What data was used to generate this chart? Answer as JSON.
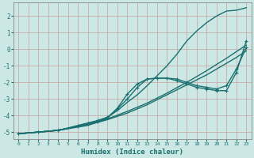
{
  "xlabel": "Humidex (Indice chaleur)",
  "xlim": [
    -0.5,
    23.5
  ],
  "ylim": [
    -5.4,
    2.8
  ],
  "xticks": [
    0,
    1,
    2,
    3,
    4,
    5,
    6,
    7,
    8,
    9,
    10,
    11,
    12,
    13,
    14,
    15,
    16,
    17,
    18,
    19,
    20,
    21,
    22,
    23
  ],
  "yticks": [
    -5,
    -4,
    -3,
    -2,
    -1,
    0,
    1,
    2
  ],
  "bg_color": "#cce8e4",
  "grid_color": "#c8a0a0",
  "line_color": "#1a7070",
  "spine_color": "#888888",
  "lines": [
    {
      "x": [
        0,
        1,
        2,
        3,
        4,
        5,
        6,
        7,
        8,
        9,
        10,
        11,
        12,
        13,
        14,
        15,
        16,
        17,
        18,
        19,
        20,
        21,
        22,
        23
      ],
      "y": [
        -5.1,
        -5.05,
        -5.0,
        -4.95,
        -4.9,
        -4.8,
        -4.7,
        -4.6,
        -4.4,
        -4.1,
        -3.7,
        -3.2,
        -2.75,
        -2.2,
        -1.6,
        -1.0,
        -0.3,
        0.5,
        1.1,
        1.6,
        2.0,
        2.3,
        2.35,
        2.5
      ],
      "marker": null,
      "lw": 1.0
    },
    {
      "x": [
        0,
        2,
        4,
        6,
        7,
        8,
        9,
        10,
        11,
        12,
        13,
        14,
        15,
        16,
        17,
        18,
        19,
        20,
        21,
        22,
        23
      ],
      "y": [
        -5.1,
        -5.0,
        -4.9,
        -4.6,
        -4.45,
        -4.3,
        -4.1,
        -3.6,
        -3.0,
        -2.3,
        -1.8,
        -1.75,
        -1.75,
        -1.8,
        -2.0,
        -2.2,
        -2.3,
        -2.4,
        -2.2,
        -1.2,
        0.1
      ],
      "marker": "+",
      "lw": 1.0
    },
    {
      "x": [
        0,
        2,
        4,
        6,
        7,
        8,
        9,
        10,
        11,
        12,
        13,
        14,
        15,
        16,
        17,
        18,
        19,
        20,
        21,
        22,
        23
      ],
      "y": [
        -5.1,
        -5.0,
        -4.9,
        -4.65,
        -4.5,
        -4.35,
        -4.15,
        -3.55,
        -2.7,
        -2.1,
        -1.8,
        -1.75,
        -1.75,
        -1.9,
        -2.1,
        -2.3,
        -2.4,
        -2.5,
        -2.5,
        -1.4,
        0.5
      ],
      "marker": "+",
      "lw": 1.0
    },
    {
      "x": [
        0,
        1,
        2,
        3,
        4,
        5,
        6,
        7,
        8,
        9,
        10,
        11,
        12,
        13,
        14,
        15,
        16,
        17,
        18,
        19,
        20,
        21,
        22,
        23
      ],
      "y": [
        -5.1,
        -5.05,
        -5.0,
        -4.95,
        -4.88,
        -4.78,
        -4.65,
        -4.55,
        -4.42,
        -4.25,
        -4.05,
        -3.85,
        -3.6,
        -3.35,
        -3.05,
        -2.75,
        -2.45,
        -2.15,
        -1.85,
        -1.55,
        -1.2,
        -0.85,
        -0.5,
        -0.1
      ],
      "marker": null,
      "lw": 1.0
    },
    {
      "x": [
        0,
        1,
        2,
        3,
        4,
        5,
        6,
        7,
        8,
        9,
        10,
        11,
        12,
        13,
        14,
        15,
        16,
        17,
        18,
        19,
        20,
        21,
        22,
        23
      ],
      "y": [
        -5.1,
        -5.05,
        -5.0,
        -4.95,
        -4.88,
        -4.78,
        -4.65,
        -4.52,
        -4.38,
        -4.2,
        -3.98,
        -3.75,
        -3.5,
        -3.25,
        -2.95,
        -2.65,
        -2.32,
        -2.0,
        -1.65,
        -1.3,
        -0.92,
        -0.55,
        -0.15,
        0.25
      ],
      "marker": null,
      "lw": 1.0
    }
  ]
}
